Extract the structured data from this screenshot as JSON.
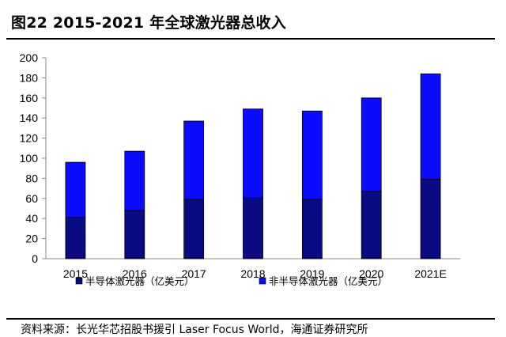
{
  "title": "图22 2015-2021 年全球激光器总收入",
  "source": "资料来源：长光华芯招股书援引 Laser Focus World，海通证券研究所",
  "chart_data": {
    "type": "bar",
    "stacked": true,
    "title": "",
    "xlabel": "",
    "ylabel": "",
    "categories": [
      "2015",
      "2016",
      "2017",
      "2018",
      "2019",
      "2020",
      "2021E"
    ],
    "series": [
      {
        "name": "半导体激光器（亿美元）",
        "color": "#0a0a82",
        "values": [
          41,
          48,
          59,
          61,
          59,
          67,
          79
        ]
      },
      {
        "name": "非半导体激光器（亿美元）",
        "color": "#0b0bff",
        "values": [
          55,
          59,
          78,
          88,
          88,
          93,
          105
        ]
      }
    ],
    "ylim": [
      0,
      200
    ],
    "yticks": [
      0,
      20,
      40,
      60,
      80,
      100,
      120,
      140,
      160,
      180,
      200
    ],
    "grid": false,
    "legend_position": "bottom"
  }
}
